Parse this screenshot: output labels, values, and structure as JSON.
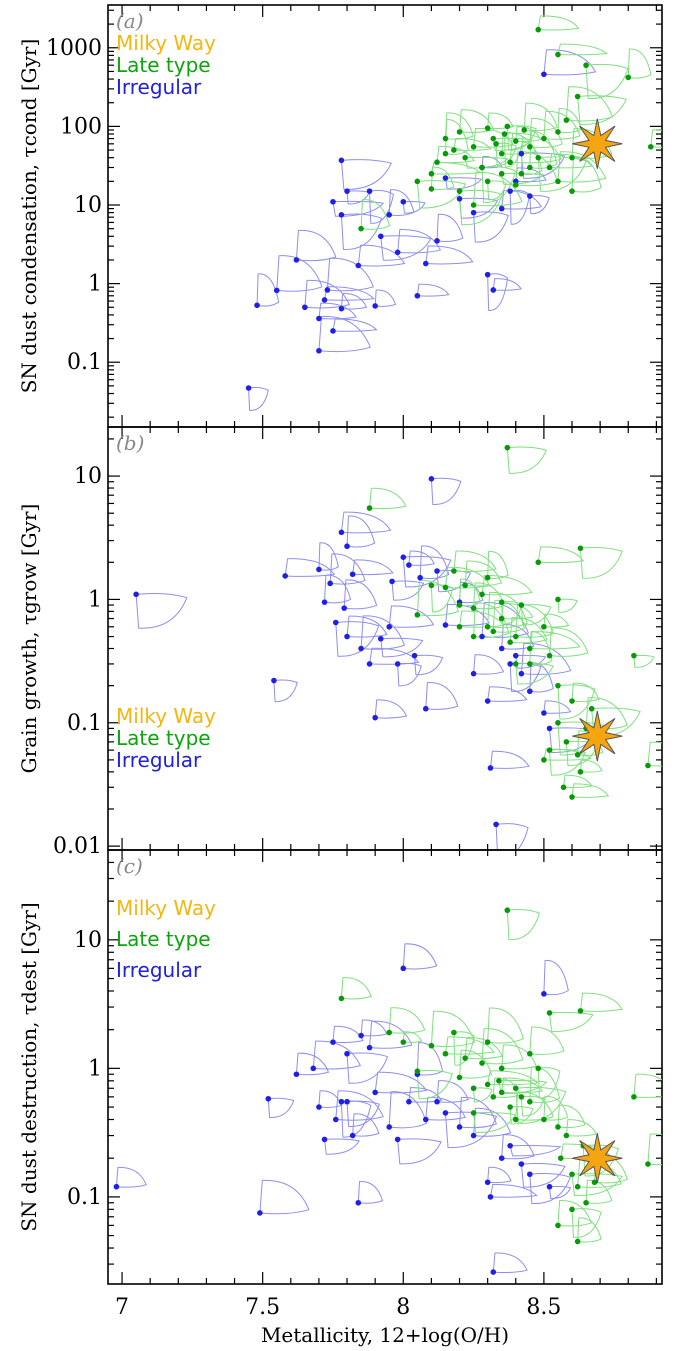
{
  "chart_data": [
    {
      "type": "scatter",
      "panel_label": "(a)",
      "ylabel": "SN dust condensation, τcond [Gyr]",
      "yscale": "log",
      "ylim": [
        0.015,
        3500
      ],
      "xlim": [
        6.95,
        8.92
      ],
      "yticks": [
        0.1,
        1,
        10,
        100,
        1000
      ],
      "ytick_labels": [
        "0.1",
        "1",
        "10",
        "100",
        "1000"
      ],
      "legend": [
        {
          "label": "Milky Way",
          "color": "#f5b60f"
        },
        {
          "label": "Late type",
          "color": "#0ea40e"
        },
        {
          "label": "Irregular",
          "color": "#2020e0"
        }
      ],
      "series": [
        {
          "name": "Irregular",
          "color": "#1f1fe8",
          "points": [
            [
              7.48,
              0.53
            ],
            [
              7.55,
              0.82
            ],
            [
              7.62,
              2.0
            ],
            [
              7.65,
              0.5
            ],
            [
              7.7,
              0.36
            ],
            [
              7.7,
              0.14
            ],
            [
              7.72,
              0.62
            ],
            [
              7.73,
              0.83
            ],
            [
              7.75,
              11.0
            ],
            [
              7.75,
              0.25
            ],
            [
              7.78,
              7.5
            ],
            [
              7.78,
              0.48
            ],
            [
              7.78,
              37.0
            ],
            [
              7.8,
              15.0
            ],
            [
              7.84,
              1.7
            ],
            [
              7.88,
              15.0
            ],
            [
              7.9,
              0.52
            ],
            [
              7.92,
              4.0
            ],
            [
              7.95,
              7.5
            ],
            [
              7.98,
              2.5
            ],
            [
              8.0,
              11.0
            ],
            [
              8.05,
              0.7
            ],
            [
              8.08,
              1.8
            ],
            [
              8.12,
              3.5
            ],
            [
              8.15,
              22.0
            ],
            [
              8.2,
              12.0
            ],
            [
              8.25,
              8.0
            ],
            [
              8.28,
              30.0
            ],
            [
              8.3,
              1.3
            ],
            [
              8.32,
              0.83
            ],
            [
              8.35,
              9.0
            ],
            [
              8.38,
              15.0
            ],
            [
              8.4,
              20.0
            ],
            [
              8.42,
              45.0
            ],
            [
              8.45,
              13.0
            ],
            [
              8.5,
              460.0
            ],
            [
              7.45,
              0.047
            ]
          ]
        },
        {
          "name": "Late type",
          "color": "#079a07",
          "points": [
            [
              7.85,
              5.0
            ],
            [
              8.05,
              20.0
            ],
            [
              8.1,
              16.0
            ],
            [
              8.12,
              35.0
            ],
            [
              8.15,
              70.0
            ],
            [
              8.18,
              50.0
            ],
            [
              8.2,
              85.0
            ],
            [
              8.22,
              40.0
            ],
            [
              8.25,
              55.0
            ],
            [
              8.28,
              30.0
            ],
            [
              8.3,
              95.0
            ],
            [
              8.32,
              70.0
            ],
            [
              8.33,
              60.0
            ],
            [
              8.35,
              45.0
            ],
            [
              8.36,
              80.0
            ],
            [
              8.37,
              100.0
            ],
            [
              8.38,
              35.0
            ],
            [
              8.4,
              65.0
            ],
            [
              8.42,
              25.0
            ],
            [
              8.43,
              90.0
            ],
            [
              8.45,
              55.0
            ],
            [
              8.48,
              40.0
            ],
            [
              8.5,
              70.0
            ],
            [
              8.52,
              30.0
            ],
            [
              8.55,
              85.0
            ],
            [
              8.58,
              120.0
            ],
            [
              8.6,
              40.0
            ],
            [
              8.65,
              600.0
            ],
            [
              8.55,
              820.0
            ],
            [
              8.48,
              1700.0
            ],
            [
              8.8,
              420.0
            ],
            [
              8.88,
              55.0
            ],
            [
              8.62,
              240.0
            ],
            [
              8.2,
              15.0
            ],
            [
              8.25,
              10.0
            ],
            [
              8.3,
              20.0
            ],
            [
              8.15,
              45.0
            ],
            [
              8.4,
              18.0
            ],
            [
              8.45,
              30.0
            ],
            [
              8.35,
              25.0
            ],
            [
              8.1,
              25.0
            ],
            [
              8.55,
              20.0
            ],
            [
              8.6,
              15.0
            ]
          ]
        },
        {
          "name": "Milky Way",
          "color": "#f5a50f",
          "points": [
            [
              8.69,
              60.0
            ]
          ]
        }
      ]
    },
    {
      "type": "scatter",
      "panel_label": "(b)",
      "ylabel": "Grain growth, τgrow [Gyr]",
      "yscale": "log",
      "ylim": [
        0.0093,
        25
      ],
      "xlim": [
        6.95,
        8.92
      ],
      "yticks": [
        0.01,
        0.1,
        1,
        10
      ],
      "ytick_labels": [
        "0.01",
        "0.1",
        "1",
        "10"
      ],
      "legend": [
        {
          "label": "Milky Way",
          "color": "#f5b60f"
        },
        {
          "label": "Late type",
          "color": "#0ea40e"
        },
        {
          "label": "Irregular",
          "color": "#2020e0"
        }
      ],
      "series": [
        {
          "name": "Irregular",
          "color": "#1f1fe8",
          "points": [
            [
              7.05,
              1.1
            ],
            [
              7.54,
              0.22
            ],
            [
              7.58,
              1.55
            ],
            [
              7.7,
              1.75
            ],
            [
              7.72,
              0.95
            ],
            [
              7.74,
              1.35
            ],
            [
              7.76,
              0.65
            ],
            [
              7.78,
              3.5
            ],
            [
              7.79,
              0.85
            ],
            [
              7.8,
              2.7
            ],
            [
              7.8,
              0.5
            ],
            [
              7.82,
              1.6
            ],
            [
              7.85,
              0.4
            ],
            [
              7.88,
              0.3
            ],
            [
              7.9,
              0.11
            ],
            [
              7.92,
              0.48
            ],
            [
              7.95,
              0.6
            ],
            [
              7.96,
              1.4
            ],
            [
              7.98,
              0.3
            ],
            [
              8.0,
              2.2
            ],
            [
              8.02,
              1.9
            ],
            [
              8.04,
              0.35
            ],
            [
              8.06,
              1.5
            ],
            [
              8.08,
              0.13
            ],
            [
              8.1,
              9.5
            ],
            [
              8.12,
              1.7
            ],
            [
              8.15,
              0.62
            ],
            [
              8.2,
              0.95
            ],
            [
              8.25,
              0.25
            ],
            [
              8.28,
              0.5
            ],
            [
              8.3,
              0.15
            ],
            [
              8.31,
              0.043
            ],
            [
              8.33,
              0.015
            ],
            [
              8.35,
              0.4
            ],
            [
              8.38,
              0.3
            ],
            [
              8.4,
              0.35
            ],
            [
              8.42,
              0.25
            ],
            [
              8.45,
              0.18
            ],
            [
              8.5,
              0.12
            ],
            [
              8.52,
              0.09
            ]
          ]
        },
        {
          "name": "Late type",
          "color": "#079a07",
          "points": [
            [
              7.88,
              5.5
            ],
            [
              8.05,
              0.75
            ],
            [
              8.1,
              1.3
            ],
            [
              8.15,
              1.25
            ],
            [
              8.18,
              1.7
            ],
            [
              8.2,
              0.9
            ],
            [
              8.22,
              1.3
            ],
            [
              8.25,
              0.85
            ],
            [
              8.28,
              1.1
            ],
            [
              8.3,
              0.6
            ],
            [
              8.32,
              0.55
            ],
            [
              8.35,
              0.7
            ],
            [
              8.37,
              17.0
            ],
            [
              8.38,
              0.45
            ],
            [
              8.4,
              0.5
            ],
            [
              8.42,
              0.9
            ],
            [
              8.45,
              0.4
            ],
            [
              8.48,
              2.0
            ],
            [
              8.5,
              0.6
            ],
            [
              8.52,
              0.35
            ],
            [
              8.55,
              0.2
            ],
            [
              8.55,
              0.1
            ],
            [
              8.58,
              0.07
            ],
            [
              8.6,
              0.15
            ],
            [
              8.62,
              0.055
            ],
            [
              8.63,
              0.04
            ],
            [
              8.65,
              0.09
            ],
            [
              8.67,
              0.13
            ],
            [
              8.5,
              0.05
            ],
            [
              8.52,
              0.06
            ],
            [
              8.57,
              0.03
            ],
            [
              8.6,
              0.025
            ],
            [
              8.82,
              0.35
            ],
            [
              8.87,
              0.045
            ],
            [
              8.63,
              2.6
            ],
            [
              8.55,
              1.0
            ],
            [
              8.4,
              0.3
            ],
            [
              8.3,
              1.5
            ],
            [
              8.45,
              0.3
            ],
            [
              8.35,
              0.95
            ],
            [
              8.25,
              0.5
            ],
            [
              8.2,
              0.6
            ]
          ]
        },
        {
          "name": "Milky Way",
          "color": "#f5a50f",
          "points": [
            [
              8.69,
              0.078
            ]
          ]
        }
      ]
    },
    {
      "type": "scatter",
      "panel_label": "(c)",
      "ylabel": "SN dust destruction, τdest [Gyr]",
      "xlabel": "Metallicity, 12+log(O/H)",
      "yscale": "log",
      "ylim": [
        0.021,
        50
      ],
      "xlim": [
        6.95,
        8.92
      ],
      "xticks": [
        7.0,
        7.5,
        8.0,
        8.5
      ],
      "xtick_labels": [
        "7",
        "7.5",
        "8",
        "8.5"
      ],
      "yticks": [
        0.1,
        1,
        10
      ],
      "ytick_labels": [
        "0.1",
        "1",
        "10"
      ],
      "legend": [
        {
          "label": "Milky Way",
          "color": "#f5b60f"
        },
        {
          "label": "Late type",
          "color": "#0ea40e"
        },
        {
          "label": "Irregular",
          "color": "#2020e0"
        }
      ],
      "series": [
        {
          "name": "Irregular",
          "color": "#1f1fe8",
          "points": [
            [
              6.98,
              0.12
            ],
            [
              7.49,
              0.075
            ],
            [
              7.52,
              0.58
            ],
            [
              7.62,
              0.9
            ],
            [
              7.68,
              1.0
            ],
            [
              7.7,
              0.5
            ],
            [
              7.72,
              0.28
            ],
            [
              7.75,
              1.6
            ],
            [
              7.76,
              0.4
            ],
            [
              7.78,
              0.55
            ],
            [
              7.8,
              0.55
            ],
            [
              7.8,
              1.3
            ],
            [
              7.82,
              0.3
            ],
            [
              7.84,
              0.09
            ],
            [
              7.85,
              1.8
            ],
            [
              7.88,
              1.45
            ],
            [
              7.9,
              0.65
            ],
            [
              7.95,
              0.35
            ],
            [
              7.98,
              0.28
            ],
            [
              8.0,
              6.0
            ],
            [
              8.02,
              0.55
            ],
            [
              8.05,
              0.9
            ],
            [
              8.08,
              0.4
            ],
            [
              8.12,
              0.55
            ],
            [
              8.15,
              0.45
            ],
            [
              8.2,
              0.35
            ],
            [
              8.25,
              0.3
            ],
            [
              8.3,
              0.13
            ],
            [
              8.31,
              0.1
            ],
            [
              8.32,
              0.026
            ],
            [
              8.35,
              0.2
            ],
            [
              8.38,
              0.25
            ],
            [
              8.42,
              0.18
            ],
            [
              8.45,
              0.15
            ],
            [
              8.5,
              3.8
            ],
            [
              8.52,
              0.12
            ]
          ]
        },
        {
          "name": "Late type",
          "color": "#079a07",
          "points": [
            [
              7.78,
              3.5
            ],
            [
              7.95,
              1.9
            ],
            [
              8.0,
              1.6
            ],
            [
              8.05,
              0.95
            ],
            [
              8.1,
              1.5
            ],
            [
              8.15,
              1.3
            ],
            [
              8.18,
              1.9
            ],
            [
              8.2,
              0.85
            ],
            [
              8.22,
              1.2
            ],
            [
              8.25,
              0.7
            ],
            [
              8.28,
              1.1
            ],
            [
              8.3,
              0.75
            ],
            [
              8.32,
              0.6
            ],
            [
              8.34,
              0.8
            ],
            [
              8.35,
              0.65
            ],
            [
              8.37,
              17.0
            ],
            [
              8.38,
              0.5
            ],
            [
              8.4,
              0.7
            ],
            [
              8.42,
              0.6
            ],
            [
              8.45,
              0.55
            ],
            [
              8.48,
              1.0
            ],
            [
              8.5,
              0.4
            ],
            [
              8.52,
              2.7
            ],
            [
              8.55,
              0.35
            ],
            [
              8.56,
              0.2
            ],
            [
              8.58,
              0.3
            ],
            [
              8.6,
              0.15
            ],
            [
              8.62,
              0.12
            ],
            [
              8.64,
              0.25
            ],
            [
              8.6,
              0.08
            ],
            [
              8.55,
              0.06
            ],
            [
              8.62,
              0.045
            ],
            [
              8.65,
              0.09
            ],
            [
              8.68,
              0.13
            ],
            [
              8.82,
              0.6
            ],
            [
              8.87,
              0.18
            ],
            [
              8.63,
              2.8
            ],
            [
              8.4,
              0.4
            ],
            [
              8.3,
              1.6
            ],
            [
              8.45,
              1.3
            ],
            [
              8.25,
              0.45
            ],
            [
              8.35,
              1.0
            ]
          ]
        },
        {
          "name": "Milky Way",
          "color": "#f5a50f",
          "points": [
            [
              8.69,
              0.2
            ]
          ]
        }
      ]
    }
  ]
}
